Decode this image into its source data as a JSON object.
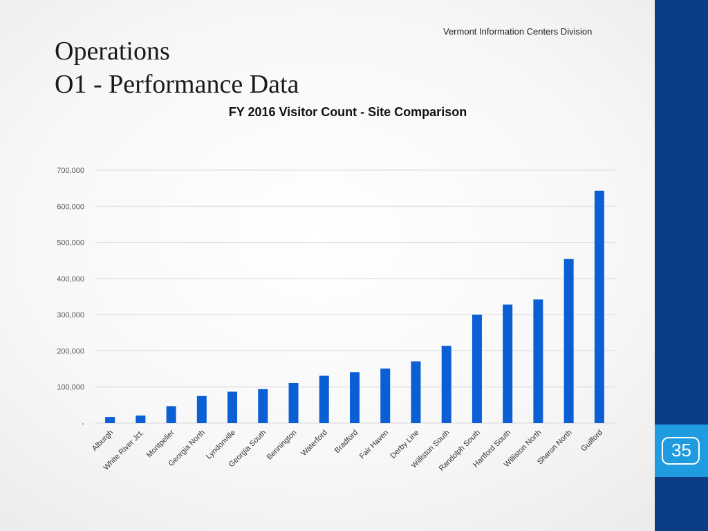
{
  "header": {
    "division": "Vermont Information Centers Division",
    "title_line1": "Operations",
    "title_line2": "O1 - Performance Data"
  },
  "page_number": "35",
  "colors": {
    "bar": "#0a5fd4",
    "sidebar": "#0b3d86",
    "badge": "#1f9be0",
    "grid": "#d9d9d9"
  },
  "chart_data": {
    "type": "bar",
    "title": "FY 2016 Visitor Count - Site Comparison",
    "xlabel": "",
    "ylabel": "",
    "ylim": [
      0,
      700000
    ],
    "yticks": [
      0,
      100000,
      200000,
      300000,
      400000,
      500000,
      600000,
      700000
    ],
    "ytick_labels": [
      "-",
      "100,000",
      "200,000",
      "300,000",
      "400,000",
      "500,000",
      "600,000",
      "700,000"
    ],
    "grid": true,
    "legend": "none",
    "categories": [
      "Alburgh",
      "White River Jct.",
      "Montpelier",
      "Georgia North",
      "Lyndonville",
      "Georgia South",
      "Bennington",
      "Waterford",
      "Bradford",
      "Fair Haven",
      "Derby Line",
      "Williston South",
      "Randolph South",
      "Hartford South",
      "Williston North",
      "Sharon North",
      "Guilford"
    ],
    "values": [
      17000,
      21000,
      47000,
      75000,
      87000,
      94000,
      111000,
      131000,
      141000,
      151000,
      171000,
      214000,
      300000,
      328000,
      342000,
      454000,
      643000
    ]
  }
}
